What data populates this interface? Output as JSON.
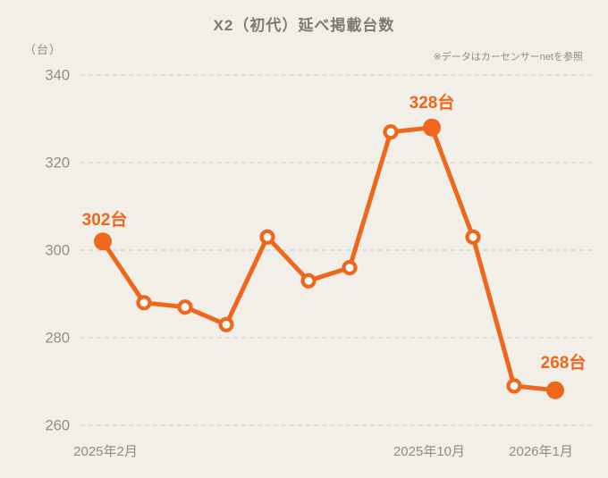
{
  "title": "X2（初代）延べ掲載台数",
  "unit_label": "（台）",
  "note": "※データはカーセンサーnetを参照",
  "colors": {
    "background": "#f1efe8",
    "line": "#ef671d",
    "marker_hollow_fill": "#fdfdfa",
    "grid": "#d8d5ca",
    "axis_text": "#8f8c85",
    "title_text": "#7d7a73",
    "annotation_text": "#ef671d"
  },
  "chart_data": {
    "type": "line",
    "title": "X2（初代）延べ掲載台数",
    "ylabel_unit": "（台）",
    "values": [
      302,
      288,
      287,
      283,
      303,
      293,
      296,
      327,
      328,
      303,
      269,
      268
    ],
    "y_ticks": [
      340,
      320,
      300,
      280,
      260
    ],
    "ylim": [
      260,
      340
    ],
    "x_tick_labels": [
      {
        "index": 0,
        "label": "2025年2月"
      },
      {
        "index": 8,
        "label": "2025年10月"
      },
      {
        "index": 11,
        "label": "2026年1月"
      }
    ],
    "annotations": [
      {
        "index": 0,
        "label": "302台"
      },
      {
        "index": 8,
        "label": "328台"
      },
      {
        "index": 11,
        "label": "268台"
      }
    ],
    "filled_point_indexes": [
      0,
      8,
      11
    ],
    "grid": "dashed-horizontal",
    "legend": "none"
  }
}
